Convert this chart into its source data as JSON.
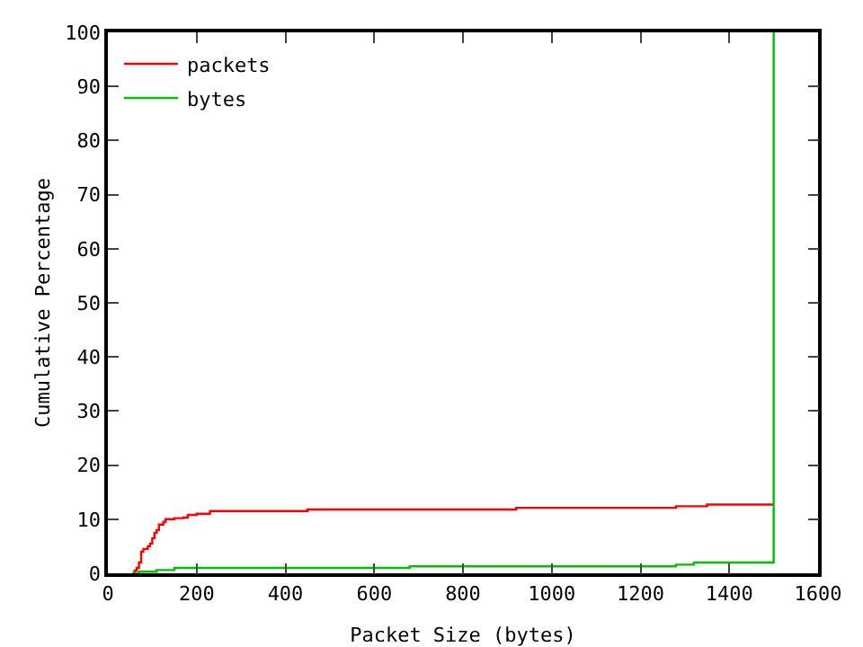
{
  "chart_data": {
    "type": "step",
    "xlabel": "Packet Size (bytes)",
    "ylabel": "Cumulative Percentage",
    "xlim": [
      0,
      1600
    ],
    "ylim": [
      0,
      100
    ],
    "xticks": [
      0,
      200,
      400,
      600,
      800,
      1000,
      1200,
      1400,
      1600
    ],
    "yticks": [
      0,
      10,
      20,
      30,
      40,
      50,
      60,
      70,
      80,
      90,
      100
    ],
    "grid": false,
    "legend": "top left",
    "marker": "none",
    "line_style": "solid",
    "series": [
      {
        "name": "packets",
        "color": "#ff0000",
        "x": [
          55,
          60,
          65,
          70,
          75,
          80,
          90,
          95,
          100,
          105,
          110,
          115,
          125,
          130,
          150,
          170,
          180,
          200,
          230,
          450,
          920,
          1280,
          1350,
          1500
        ],
        "values": [
          0,
          0.5,
          1,
          2,
          4,
          4.5,
          5,
          5.5,
          6.5,
          7.5,
          8,
          9,
          9.5,
          10,
          10.2,
          10.3,
          10.8,
          11,
          11.5,
          11.8,
          12.1,
          12.4,
          12.7,
          12.7
        ]
      },
      {
        "name": "bytes",
        "color": "#00c000",
        "x": [
          55,
          70,
          110,
          150,
          680,
          1280,
          1320,
          1500,
          1500
        ],
        "values": [
          0,
          0.3,
          0.6,
          1,
          1.3,
          1.6,
          2,
          2,
          100
        ]
      }
    ]
  }
}
